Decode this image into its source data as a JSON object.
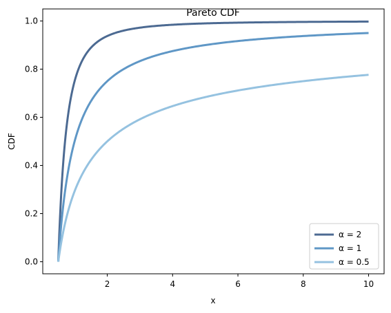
{
  "chart_data": {
    "type": "line",
    "title": "Pareto CDF",
    "xlabel": "x",
    "ylabel": "CDF",
    "xlim": [
      0.025,
      10.475
    ],
    "ylim": [
      -0.05,
      1.05
    ],
    "x_ticks": [
      2,
      4,
      6,
      8,
      10
    ],
    "y_ticks": [
      0.0,
      0.2,
      0.4,
      0.6,
      0.8,
      1.0
    ],
    "x_tick_labels": [
      "2",
      "4",
      "6",
      "8",
      "10"
    ],
    "y_tick_labels": [
      "0.0",
      "0.2",
      "0.4",
      "0.6",
      "0.8",
      "1.0"
    ],
    "grid": false,
    "legend_position": "lower-right",
    "x_min": 0.5,
    "x_max": 10,
    "series": [
      {
        "name": "α = 2",
        "alpha": 2,
        "color": "#4c6a92"
      },
      {
        "name": "α = 1",
        "alpha": 1,
        "color": "#5f97c6"
      },
      {
        "name": "α = 0.5",
        "alpha": 0.5,
        "color": "#95c2e0"
      }
    ]
  }
}
